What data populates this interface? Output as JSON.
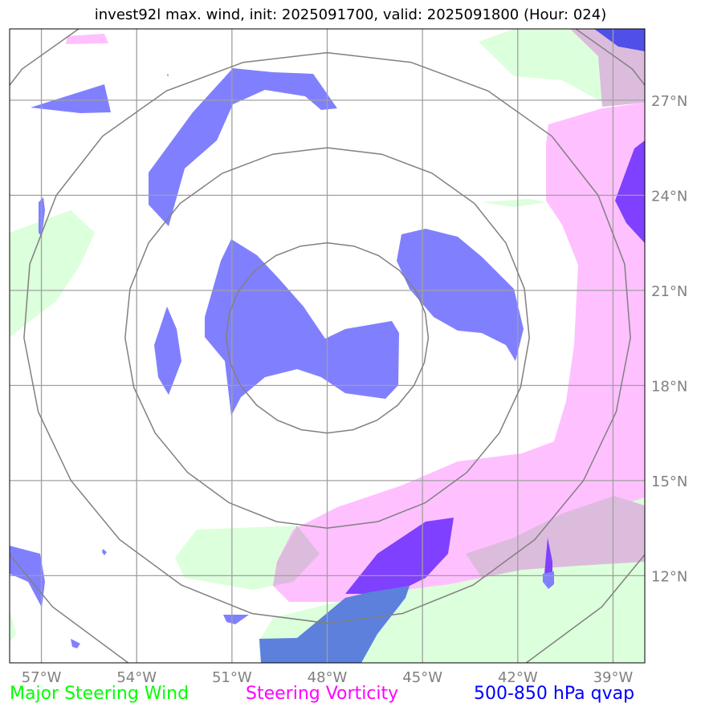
{
  "title": "invest92l max. wind, init: 2025091700, valid: 2025091800 (Hour: 024)",
  "legend": [
    {
      "label": "Major Steering Wind",
      "color": "#00ff00"
    },
    {
      "label": "Steering Vorticity",
      "color": "#ff00ff"
    },
    {
      "label": "500-850 hPa qvap",
      "color": "#0000ff"
    }
  ],
  "map": {
    "lon_range": [
      -58,
      -38
    ],
    "lat_range": [
      9.25,
      29.25
    ],
    "lon_ticks": [
      "57°W",
      "54°W",
      "51°W",
      "48°W",
      "45°W",
      "42°W",
      "39°W"
    ],
    "lat_ticks": [
      "12°N",
      "15°N",
      "18°N",
      "21°N",
      "24°N",
      "27°N"
    ],
    "center": {
      "lon": -48,
      "lat": 19.5
    },
    "range_rings_deg": [
      3,
      6,
      9,
      12
    ],
    "grid": true,
    "colors": {
      "steering_wind": "#dcffdc",
      "steering_vorticity": "#ffc0ff",
      "overlap_wind_vorticity": "#dcbcdc",
      "qvap": "#8080ff",
      "qvap_over_vorticity": "#8040ff",
      "qvap_over_wind": "#5c80dc",
      "ring": "#808080",
      "grid": "#a0a0a0"
    }
  }
}
